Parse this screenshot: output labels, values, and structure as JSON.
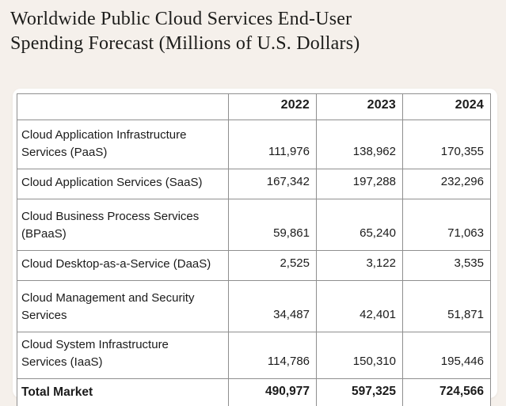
{
  "page": {
    "background_color": "#f5f0eb",
    "card_color": "#ffffff",
    "table_border_color": "#8f8f8f",
    "text_color": "#1b1b1b"
  },
  "title": {
    "line1": "Worldwide Public Cloud Services End-User",
    "line2": "Spending Forecast (Millions of U.S. Dollars)"
  },
  "table": {
    "columns": [
      "",
      "2022",
      "2023",
      "2024"
    ],
    "rows": [
      {
        "label": "Cloud Application Infrastructure Services (PaaS)",
        "values": [
          "111,976",
          "138,962",
          "170,355"
        ],
        "is_total": false
      },
      {
        "label": "Cloud Application Services (SaaS)",
        "values": [
          "167,342",
          "197,288",
          "232,296"
        ],
        "is_total": false
      },
      {
        "label": "Cloud Business Process Services (BPaaS)",
        "values": [
          "59,861",
          "65,240",
          "71,063"
        ],
        "is_total": false
      },
      {
        "label": "Cloud Desktop-as-a-Service (DaaS)",
        "values": [
          "2,525",
          "3,122",
          "3,535"
        ],
        "is_total": false
      },
      {
        "label": "Cloud Management and Security Services",
        "values": [
          "34,487",
          "42,401",
          "51,871"
        ],
        "is_total": false
      },
      {
        "label": "Cloud System Infrastructure Services (IaaS)",
        "values": [
          "114,786",
          "150,310",
          "195,446"
        ],
        "is_total": false
      },
      {
        "label": "Total Market",
        "values": [
          "490,977",
          "597,325",
          "724,566"
        ],
        "is_total": true
      }
    ]
  },
  "chart_data": {
    "type": "table",
    "title": "Worldwide Public Cloud Services End-User Spending Forecast (Millions of U.S. Dollars)",
    "unit": "Millions of U.S. Dollars",
    "categories": [
      "2022",
      "2023",
      "2024"
    ],
    "series": [
      {
        "name": "Cloud Application Infrastructure Services (PaaS)",
        "values": [
          111976,
          138962,
          170355
        ]
      },
      {
        "name": "Cloud Application Services (SaaS)",
        "values": [
          167342,
          197288,
          232296
        ]
      },
      {
        "name": "Cloud Business Process Services (BPaaS)",
        "values": [
          59861,
          65240,
          71063
        ]
      },
      {
        "name": "Cloud Desktop-as-a-Service (DaaS)",
        "values": [
          2525,
          3122,
          3535
        ]
      },
      {
        "name": "Cloud Management and Security Services",
        "values": [
          34487,
          42401,
          51871
        ]
      },
      {
        "name": "Cloud System Infrastructure Services (IaaS)",
        "values": [
          114786,
          150310,
          195446
        ]
      },
      {
        "name": "Total Market",
        "values": [
          490977,
          597325,
          724566
        ]
      }
    ]
  }
}
